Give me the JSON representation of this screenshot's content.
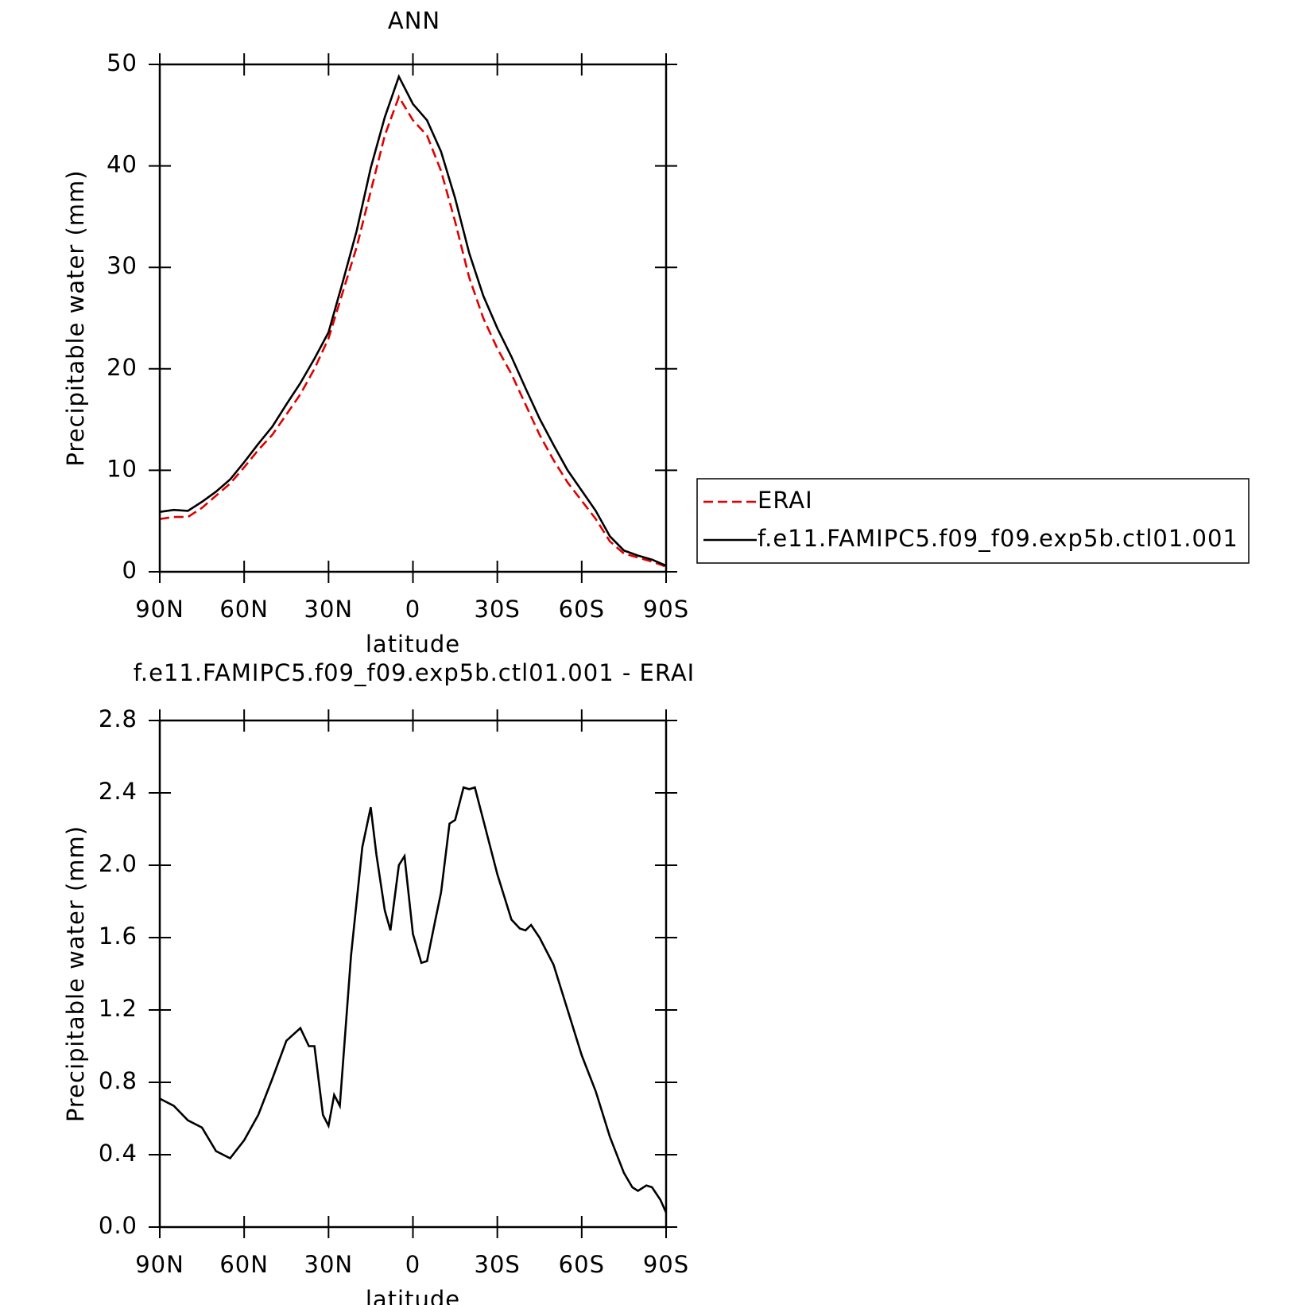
{
  "chart_data": [
    {
      "type": "line",
      "title": "ANN",
      "x_label": "latitude",
      "y_label": "Precipitable water (mm)",
      "x": [
        90,
        85,
        80,
        75,
        70,
        65,
        60,
        55,
        50,
        45,
        40,
        35,
        30,
        25,
        20,
        15,
        10,
        5,
        0,
        -5,
        -10,
        -15,
        -20,
        -25,
        -30,
        -35,
        -40,
        -45,
        -50,
        -55,
        -60,
        -65,
        -70,
        -75,
        -80,
        -85,
        -90
      ],
      "series": [
        {
          "name": "ERAI",
          "color": "#e00000",
          "line_style": "dashed",
          "values": [
            5.2,
            5.4,
            5.4,
            6.3,
            7.5,
            8.7,
            10.3,
            12,
            13.5,
            15.5,
            17.5,
            20,
            23,
            27.5,
            32,
            37.5,
            43,
            46.8,
            44.5,
            43,
            39.5,
            34.5,
            29,
            25,
            22,
            19.5,
            16.5,
            13.5,
            11,
            8.8,
            7,
            5.2,
            3,
            1.8,
            1.4,
            1.0,
            0.5
          ]
        },
        {
          "name": "f.e11.FAMIPC5.f09_f09.exp5b.ctl01.001",
          "color": "#000000",
          "line_style": "solid",
          "values": [
            5.9,
            6.1,
            6.0,
            6.9,
            7.9,
            9.1,
            10.8,
            12.6,
            14.3,
            16.5,
            18.6,
            21,
            23.6,
            28.5,
            33.6,
            39.8,
            44.8,
            48.8,
            46.1,
            44.5,
            41.4,
            36.8,
            31.4,
            27.2,
            24,
            21.2,
            18.1,
            15.1,
            12.5,
            10,
            8,
            6,
            3.5,
            2.1,
            1.6,
            1.2,
            0.6
          ]
        }
      ],
      "xlim": [
        90,
        -90
      ],
      "xticks": [
        {
          "value": 90,
          "label": "90N"
        },
        {
          "value": 60,
          "label": "60N"
        },
        {
          "value": 30,
          "label": "30N"
        },
        0,
        {
          "value": -30,
          "label": "30S"
        },
        {
          "value": -60,
          "label": "60S"
        },
        {
          "value": -90,
          "label": "90S"
        }
      ],
      "ylim": [
        0,
        50
      ],
      "yticks": [
        0,
        10,
        20,
        30,
        40,
        50
      ],
      "legend": "right"
    },
    {
      "type": "line",
      "title": "f.e11.FAMIPC5.f09_f09.exp5b.ctl01.001 - ERAI",
      "x_label": "latitude",
      "y_label": "Precipitable water (mm)",
      "x": [
        90,
        85,
        80,
        75,
        70,
        65,
        60,
        55,
        50,
        45,
        40,
        37,
        35,
        32,
        30,
        28,
        26,
        22,
        18,
        15,
        13,
        10,
        8,
        5,
        3,
        0,
        -3,
        -5,
        -8,
        -10,
        -13,
        -15,
        -18,
        -20,
        -22,
        -25,
        -30,
        -35,
        -38,
        -40,
        -42,
        -45,
        -50,
        -55,
        -60,
        -65,
        -70,
        -75,
        -78,
        -80,
        -83,
        -85,
        -88,
        -90
      ],
      "series": [
        {
          "color": "#000000",
          "line_style": "solid",
          "values": [
            0.71,
            0.67,
            0.59,
            0.55,
            0.42,
            0.38,
            0.48,
            0.62,
            0.82,
            1.03,
            1.1,
            1.0,
            1.0,
            0.62,
            0.56,
            0.73,
            0.67,
            1.5,
            2.1,
            2.32,
            2.06,
            1.75,
            1.64,
            2.0,
            2.05,
            1.62,
            1.46,
            1.47,
            1.7,
            1.85,
            2.23,
            2.25,
            2.43,
            2.42,
            2.43,
            2.25,
            1.95,
            1.7,
            1.65,
            1.64,
            1.67,
            1.6,
            1.45,
            1.2,
            0.95,
            0.75,
            0.5,
            0.3,
            0.22,
            0.2,
            0.23,
            0.22,
            0.15,
            0.08
          ]
        }
      ],
      "xlim": [
        90,
        -90
      ],
      "xticks": [
        {
          "value": 90,
          "label": "90N"
        },
        {
          "value": 60,
          "label": "60N"
        },
        {
          "value": 30,
          "label": "30N"
        },
        0,
        {
          "value": -30,
          "label": "30S"
        },
        {
          "value": -60,
          "label": "60S"
        },
        {
          "value": -90,
          "label": "90S"
        }
      ],
      "ylim": [
        0,
        2.8
      ],
      "yticks": [
        {
          "value": 0,
          "label": "0.0"
        },
        0.4,
        0.8,
        1.2,
        1.6,
        {
          "value": 2,
          "label": "2.0"
        },
        2.4,
        2.8
      ]
    }
  ]
}
